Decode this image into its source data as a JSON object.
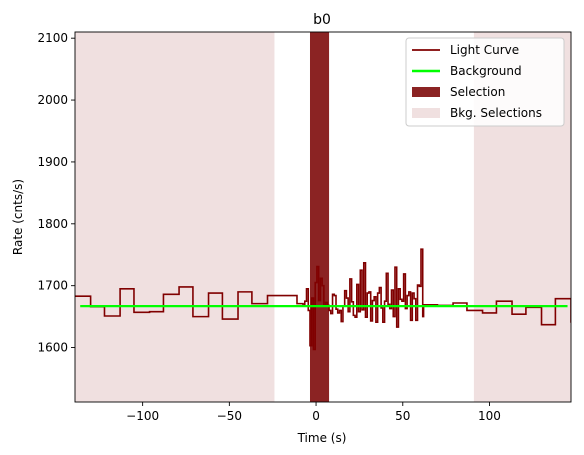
{
  "chart_data": {
    "type": "line",
    "title": "b0",
    "xlabel": "Time (s)",
    "ylabel": "Rate (cnts/s)",
    "xlim": [
      -139,
      147
    ],
    "ylim": [
      1512,
      2110
    ],
    "xticks": [
      -100,
      -50,
      0,
      50,
      100
    ],
    "xtick_labels": [
      "−100",
      "−50",
      "0",
      "50",
      "100"
    ],
    "yticks": [
      1600,
      1700,
      1800,
      1900,
      2000,
      2100
    ],
    "ytick_labels": [
      "1600",
      "1700",
      "1800",
      "1900",
      "2000",
      "2100"
    ],
    "grid": false,
    "legend_position": "top-right",
    "colors": {
      "light_curve": "#800000",
      "background": "#00ff00",
      "selection": "#8b2323",
      "bkg_selection": "#f0e0e0"
    },
    "legend": [
      {
        "label": "Light Curve",
        "kind": "line",
        "color": "#800000"
      },
      {
        "label": "Background",
        "kind": "line",
        "color": "#00ff00"
      },
      {
        "label": "Selection",
        "kind": "patch",
        "color": "#8b2323"
      },
      {
        "label": "Bkg. Selections",
        "kind": "patch",
        "color": "#f0e0e0"
      }
    ],
    "background_level": 1667,
    "background_range": [
      -136,
      145
    ],
    "selection_range": [
      -3.5,
      7.5
    ],
    "bkg_selections": [
      [
        -139,
        -24
      ],
      [
        91,
        147
      ]
    ],
    "series": [
      {
        "name": "Light Curve",
        "step": "post",
        "x": [
          -139,
          -130,
          -122,
          -113,
          -105,
          -96,
          -88,
          -79,
          -71,
          -62,
          -54,
          -45,
          -37,
          -28,
          -20,
          -11,
          -7.5,
          -6.5,
          -5.5,
          -4.5,
          -3.5,
          -2.5,
          -1.5,
          -0.5,
          0.5,
          1.5,
          2.5,
          3.5,
          4.5,
          5.5,
          6.5,
          7.5,
          8.5,
          9.5,
          10.5,
          11.5,
          12.5,
          13.5,
          14.5,
          15.5,
          16.5,
          17.5,
          18.5,
          19.5,
          20.5,
          21.5,
          22.5,
          23.5,
          24.5,
          25.5,
          26.5,
          27.5,
          28.5,
          29.5,
          30.5,
          31.5,
          32.5,
          33.5,
          34.5,
          35.5,
          36.5,
          37.5,
          38.5,
          39.5,
          40.5,
          41.5,
          42.5,
          43.5,
          44.5,
          45.5,
          46.5,
          47.5,
          48.5,
          49.5,
          50.5,
          51.5,
          52.5,
          53.5,
          54.5,
          55.5,
          56.5,
          57.5,
          58.5,
          59.5,
          60.5,
          61.5,
          62,
          70,
          79,
          87,
          96,
          104,
          113,
          121,
          130,
          138,
          147
        ],
        "y": [
          1683,
          1666,
          1651,
          1695,
          1657,
          1658,
          1686,
          1698,
          1650,
          1688,
          1646,
          1690,
          1671,
          1684,
          1684,
          1671,
          1668,
          1675,
          1695,
          1660,
          1603,
          1680,
          1597,
          1705,
          1731,
          1676,
          1712,
          1700,
          1667,
          1673,
          1668,
          1660,
          1655,
          1686,
          1684,
          1662,
          1656,
          1660,
          1642,
          1667,
          1692,
          1680,
          1658,
          1711,
          1674,
          1652,
          1649,
          1702,
          1658,
          1725,
          1661,
          1737,
          1649,
          1688,
          1690,
          1643,
          1676,
          1682,
          1641,
          1688,
          1697,
          1664,
          1641,
          1675,
          1720,
          1670,
          1663,
          1693,
          1650,
          1730,
          1633,
          1695,
          1678,
          1675,
          1719,
          1663,
          1684,
          1690,
          1644,
          1688,
          1679,
          1644,
          1701,
          1699,
          1759,
          1650,
          1669,
          1668,
          1672,
          1660,
          1656,
          1675,
          1654,
          1665,
          1637,
          1679,
          1640
        ]
      }
    ]
  }
}
